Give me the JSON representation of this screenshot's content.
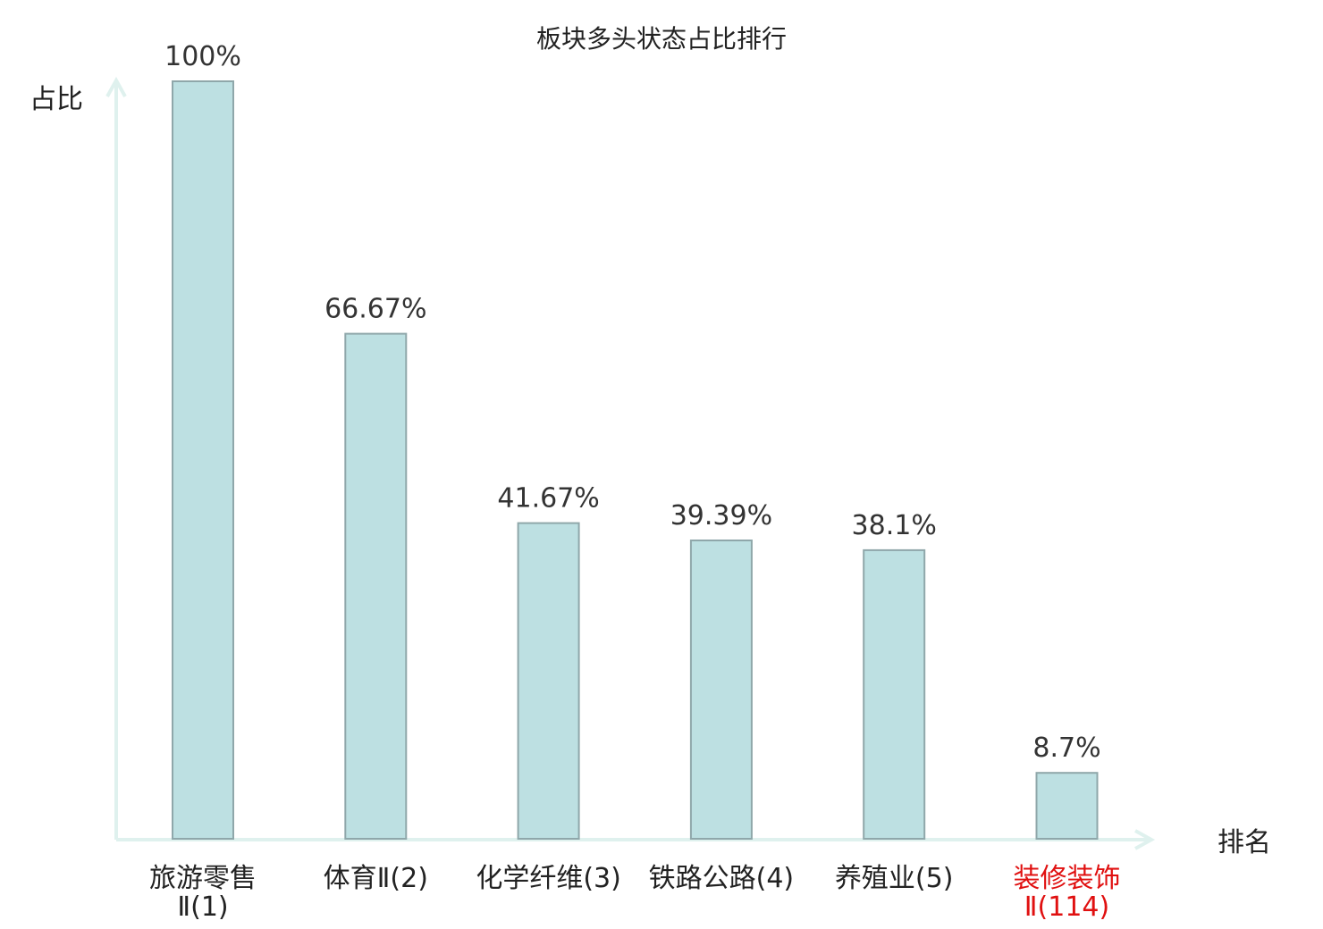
{
  "chart_data": {
    "type": "bar",
    "title": "板块多头状态占比排行",
    "ylabel": "占比",
    "xlabel": "排名",
    "ylim": [
      0,
      100
    ],
    "grid": false,
    "categories": [
      {
        "name": "旅游零售",
        "sub": "Ⅱ(1)",
        "highlight": false
      },
      {
        "name": "体育Ⅱ(2)",
        "sub": "",
        "highlight": false
      },
      {
        "name": "化学纤维(3)",
        "sub": "",
        "highlight": false
      },
      {
        "name": "铁路公路(4)",
        "sub": "",
        "highlight": false
      },
      {
        "name": "养殖业(5)",
        "sub": "",
        "highlight": false
      },
      {
        "name": "装修装饰",
        "sub": "Ⅱ(114)",
        "highlight": true
      }
    ],
    "values": [
      100,
      66.67,
      41.67,
      39.39,
      38.1,
      8.7
    ],
    "value_labels": [
      "100%",
      "66.67%",
      "41.67%",
      "39.39%",
      "38.1%",
      "8.7%"
    ],
    "colors": {
      "bar_fill": "#bde0e2",
      "bar_stroke": "#8fa7aa",
      "axis": "#dff1ee",
      "label": "#222222",
      "highlight": "#e01010"
    }
  }
}
